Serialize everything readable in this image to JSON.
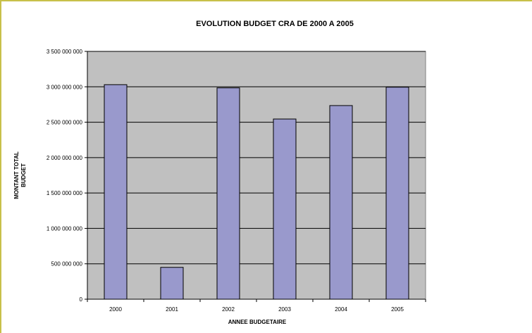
{
  "chart_data": {
    "type": "bar",
    "title": "EVOLUTION BUDGET CRA DE 2000 A 2005",
    "xlabel": "ANNEE BUDGETAIRE",
    "ylabel_lines": [
      "MONTANT TOTAL",
      "BUDGET"
    ],
    "categories": [
      "2000",
      "2001",
      "2002",
      "2003",
      "2004",
      "2005"
    ],
    "values": [
      3030000000,
      450000000,
      2985000000,
      2545000000,
      2735000000,
      2995000000
    ],
    "ylim": [
      0,
      3500000000
    ],
    "yticks": [
      0,
      500000000,
      1000000000,
      1500000000,
      2000000000,
      2500000000,
      3000000000,
      3500000000
    ],
    "ytick_labels": [
      "0",
      "500 000 000",
      "1 000 000 000",
      "1 500 000 000",
      "2 000 000 000",
      "2 500 000 000",
      "3 000 000 000",
      "3 500 000 000"
    ],
    "grid": true,
    "colors": {
      "bar": "#9999cc",
      "plot_background": "#c0c0c0",
      "frame": "#c8c04a"
    }
  }
}
